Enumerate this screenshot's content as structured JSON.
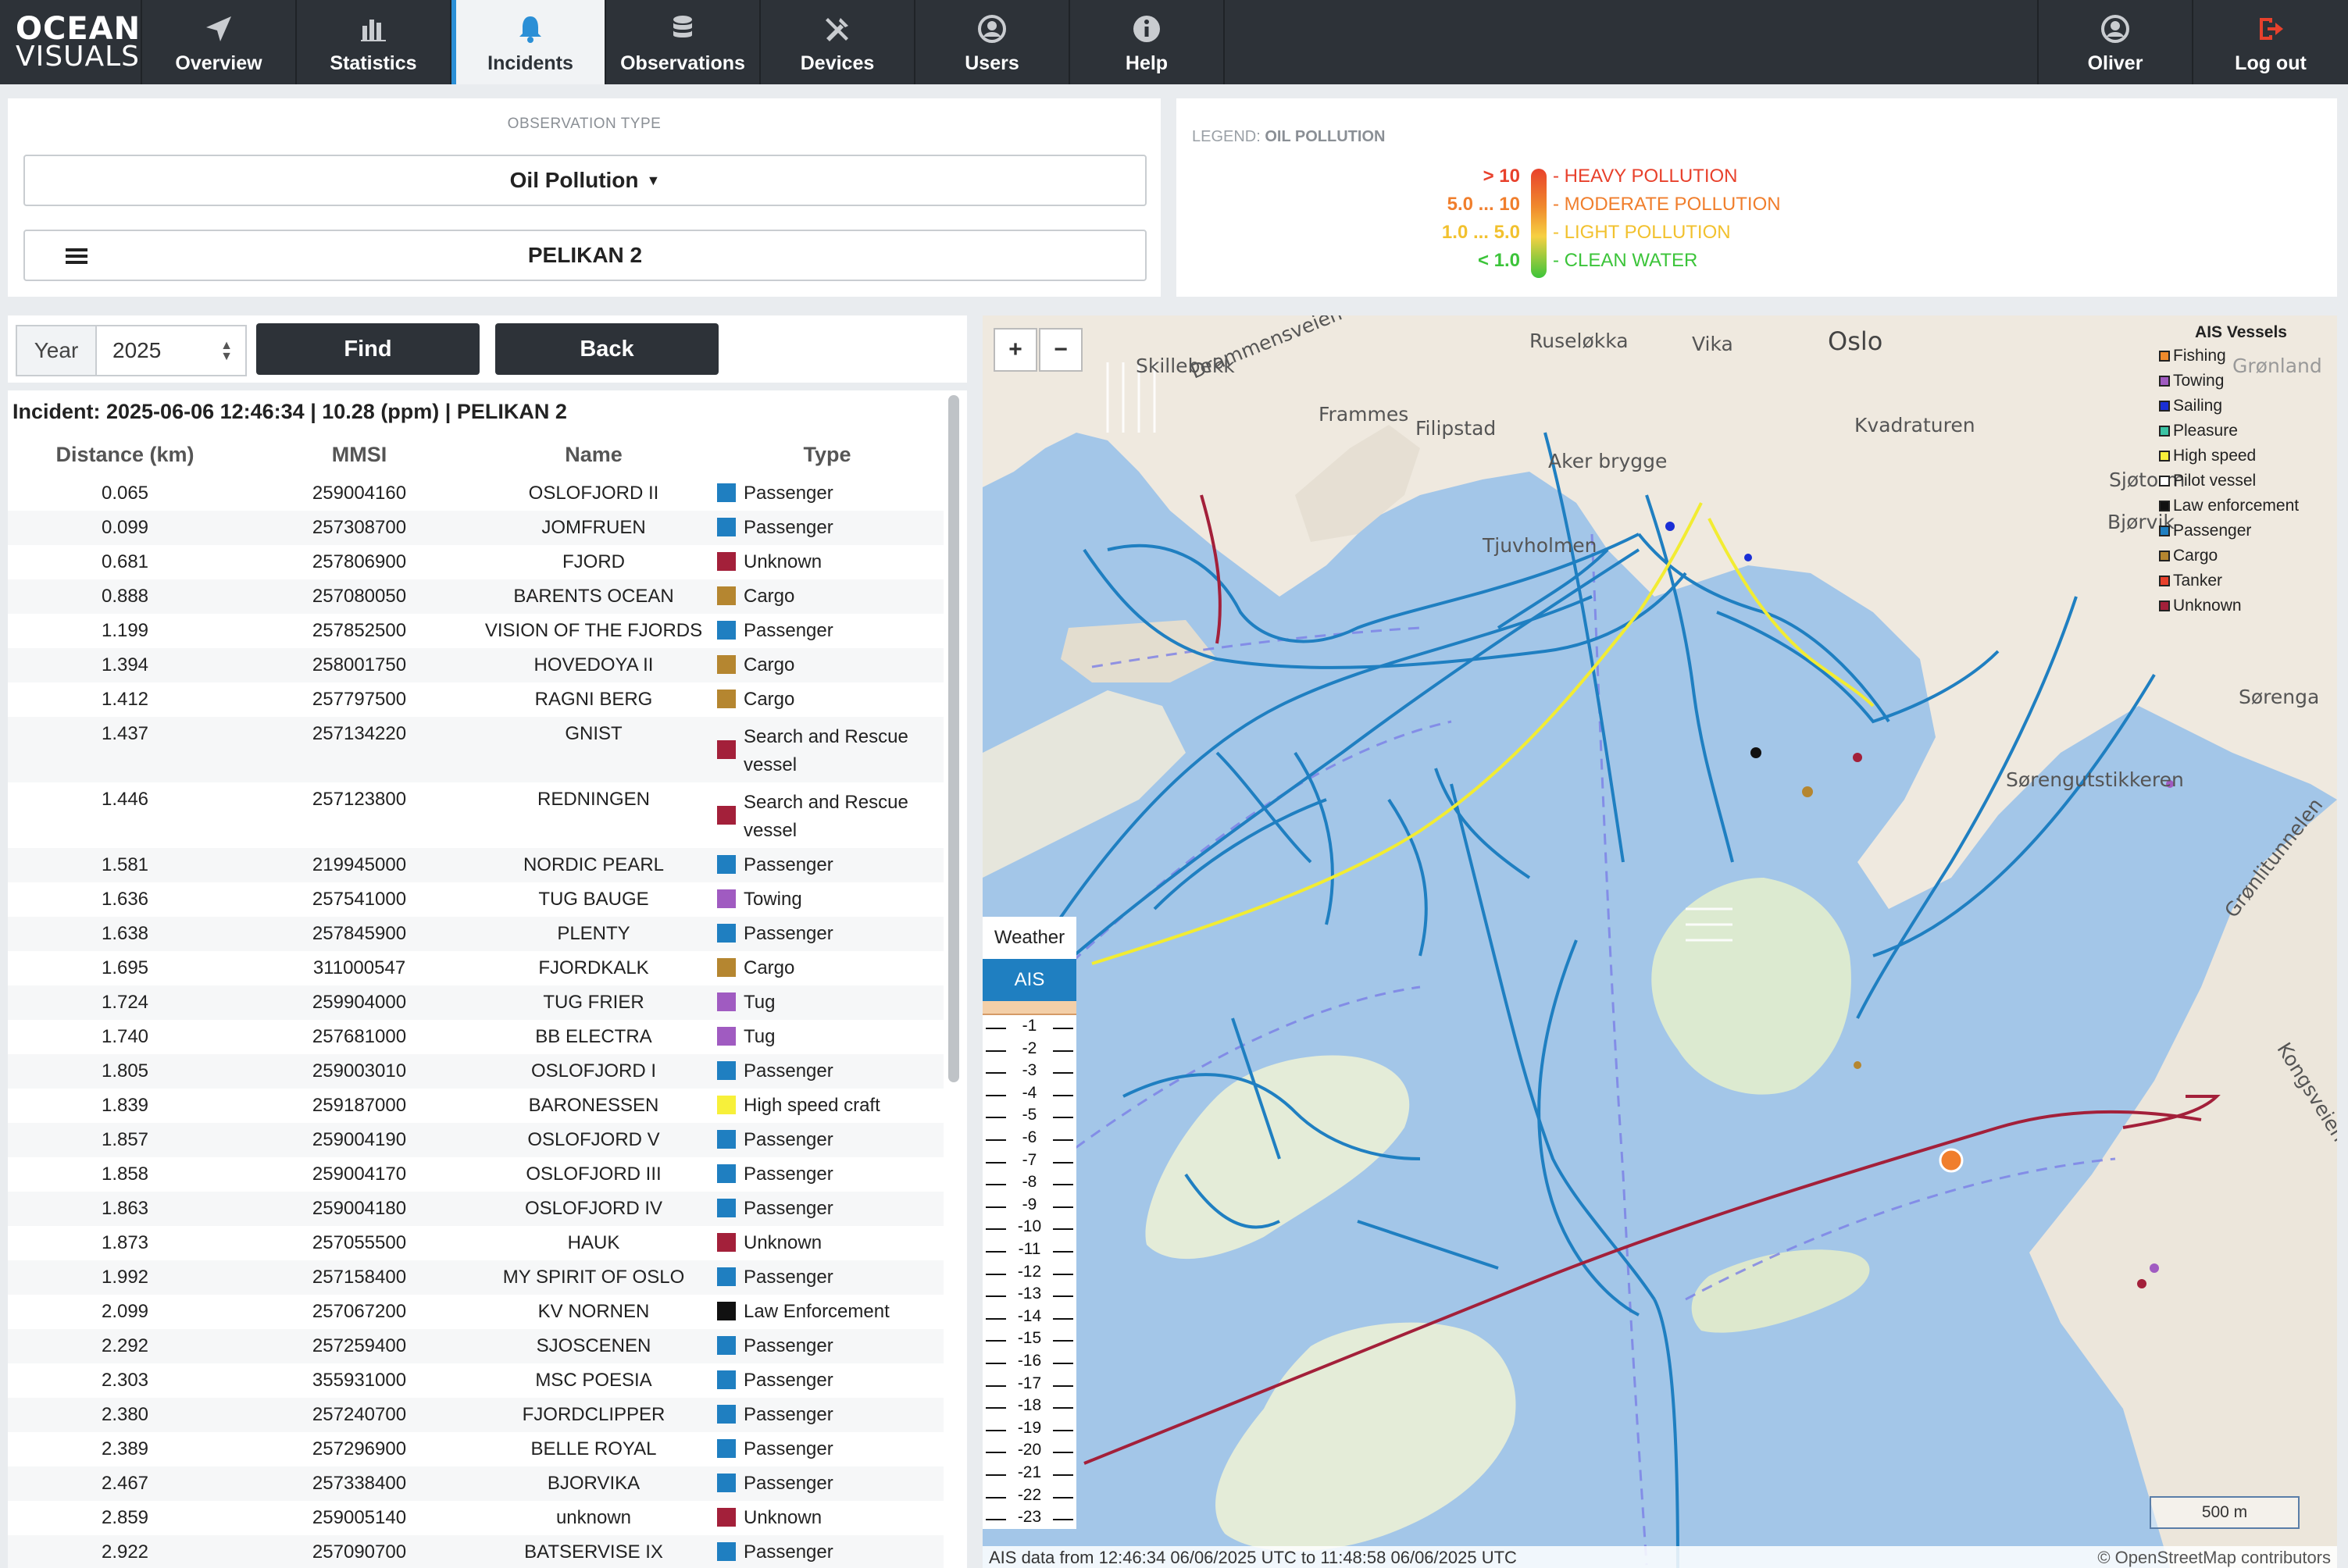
{
  "logo": {
    "line1": "OCEAN",
    "line2": "VISUALS"
  },
  "nav": {
    "tabs": [
      {
        "label": "Overview",
        "icon": "send-icon"
      },
      {
        "label": "Statistics",
        "icon": "bar-chart-icon"
      },
      {
        "label": "Incidents",
        "icon": "bell-icon"
      },
      {
        "label": "Observations",
        "icon": "database-icon"
      },
      {
        "label": "Devices",
        "icon": "tools-icon"
      },
      {
        "label": "Users",
        "icon": "user-circle-icon"
      },
      {
        "label": "Help",
        "icon": "info-icon"
      }
    ],
    "active_tab": "Incidents",
    "user": {
      "label": "Oliver",
      "icon": "user-circle-icon"
    },
    "logout": {
      "label": "Log out",
      "icon": "logout-icon"
    }
  },
  "observation": {
    "section_title": "OBSERVATION TYPE",
    "type_label": "Oil Pollution",
    "device_label": "PELIKAN 2"
  },
  "legend": {
    "prefix": "LEGEND:",
    "name": "OIL POLLUTION",
    "rows": [
      {
        "value": "> 10",
        "text": "- HEAVY POLLUTION",
        "color": "#e8412c"
      },
      {
        "value": "5.0 ... 10",
        "text": "- MODERATE POLLUTION",
        "color": "#f07e2c"
      },
      {
        "value": "1.0 ... 5.0",
        "text": "- LIGHT POLLUTION",
        "color": "#f2c12e"
      },
      {
        "value": "< 1.0",
        "text": "- CLEAN WATER",
        "color": "#3cc43a"
      }
    ]
  },
  "search": {
    "year_label": "Year",
    "year_value": "2025",
    "find_label": "Find",
    "back_label": "Back"
  },
  "incident": {
    "title": "Incident: 2025-06-06 12:46:34 | 10.28 (ppm) | PELIKAN 2",
    "columns": [
      "Distance (km)",
      "MMSI",
      "Name",
      "Type"
    ],
    "rows": [
      {
        "distance": "0.065",
        "mmsi": "259004160",
        "name": "OSLOFJORD II",
        "type": "Passenger",
        "color": "#1f7fc1"
      },
      {
        "distance": "0.099",
        "mmsi": "257308700",
        "name": "JOMFRUEN",
        "type": "Passenger",
        "color": "#1f7fc1"
      },
      {
        "distance": "0.681",
        "mmsi": "257806900",
        "name": "FJORD",
        "type": "Unknown",
        "color": "#a3203a"
      },
      {
        "distance": "0.888",
        "mmsi": "257080050",
        "name": "BARENTS OCEAN",
        "type": "Cargo",
        "color": "#b58630"
      },
      {
        "distance": "1.199",
        "mmsi": "257852500",
        "name": "VISION OF THE FJORDS",
        "type": "Passenger",
        "color": "#1f7fc1"
      },
      {
        "distance": "1.394",
        "mmsi": "258001750",
        "name": "HOVEDOYA II",
        "type": "Cargo",
        "color": "#b58630"
      },
      {
        "distance": "1.412",
        "mmsi": "257797500",
        "name": "RAGNI BERG",
        "type": "Cargo",
        "color": "#b58630"
      },
      {
        "distance": "1.437",
        "mmsi": "257134220",
        "name": "GNIST",
        "type": "Search and Rescue vessel",
        "color": "#a3203a"
      },
      {
        "distance": "1.446",
        "mmsi": "257123800",
        "name": "REDNINGEN",
        "type": "Search and Rescue vessel",
        "color": "#a3203a"
      },
      {
        "distance": "1.581",
        "mmsi": "219945000",
        "name": "NORDIC PEARL",
        "type": "Passenger",
        "color": "#1f7fc1"
      },
      {
        "distance": "1.636",
        "mmsi": "257541000",
        "name": "TUG BAUGE",
        "type": "Towing",
        "color": "#a05bc1"
      },
      {
        "distance": "1.638",
        "mmsi": "257845900",
        "name": "PLENTY",
        "type": "Passenger",
        "color": "#1f7fc1"
      },
      {
        "distance": "1.695",
        "mmsi": "311000547",
        "name": "FJORDKALK",
        "type": "Cargo",
        "color": "#b58630"
      },
      {
        "distance": "1.724",
        "mmsi": "259904000",
        "name": "TUG FRIER",
        "type": "Tug",
        "color": "#a05bc1"
      },
      {
        "distance": "1.740",
        "mmsi": "257681000",
        "name": "BB ELECTRA",
        "type": "Tug",
        "color": "#a05bc1"
      },
      {
        "distance": "1.805",
        "mmsi": "259003010",
        "name": "OSLOFJORD I",
        "type": "Passenger",
        "color": "#1f7fc1"
      },
      {
        "distance": "1.839",
        "mmsi": "259187000",
        "name": "BARONESSEN",
        "type": "High speed craft",
        "color": "#f7f03a"
      },
      {
        "distance": "1.857",
        "mmsi": "259004190",
        "name": "OSLOFJORD V",
        "type": "Passenger",
        "color": "#1f7fc1"
      },
      {
        "distance": "1.858",
        "mmsi": "259004170",
        "name": "OSLOFJORD III",
        "type": "Passenger",
        "color": "#1f7fc1"
      },
      {
        "distance": "1.863",
        "mmsi": "259004180",
        "name": "OSLOFJORD IV",
        "type": "Passenger",
        "color": "#1f7fc1"
      },
      {
        "distance": "1.873",
        "mmsi": "257055500",
        "name": "HAUK",
        "type": "Unknown",
        "color": "#a3203a"
      },
      {
        "distance": "1.992",
        "mmsi": "257158400",
        "name": "MY SPIRIT OF OSLO",
        "type": "Passenger",
        "color": "#1f7fc1"
      },
      {
        "distance": "2.099",
        "mmsi": "257067200",
        "name": "KV NORNEN",
        "type": "Law Enforcement",
        "color": "#111111"
      },
      {
        "distance": "2.292",
        "mmsi": "257259400",
        "name": "SJOSCENEN",
        "type": "Passenger",
        "color": "#1f7fc1"
      },
      {
        "distance": "2.303",
        "mmsi": "355931000",
        "name": "MSC POESIA",
        "type": "Passenger",
        "color": "#1f7fc1"
      },
      {
        "distance": "2.380",
        "mmsi": "257240700",
        "name": "FJORDCLIPPER",
        "type": "Passenger",
        "color": "#1f7fc1"
      },
      {
        "distance": "2.389",
        "mmsi": "257296900",
        "name": "BELLE ROYAL",
        "type": "Passenger",
        "color": "#1f7fc1"
      },
      {
        "distance": "2.467",
        "mmsi": "257338400",
        "name": "BJORVIKA",
        "type": "Passenger",
        "color": "#1f7fc1"
      },
      {
        "distance": "2.859",
        "mmsi": "259005140",
        "name": "unknown",
        "type": "Unknown",
        "color": "#a3203a"
      },
      {
        "distance": "2.922",
        "mmsi": "257090700",
        "name": "BATSERVISE IX",
        "type": "Passenger",
        "color": "#1f7fc1"
      }
    ]
  },
  "map": {
    "zoom_in": "+",
    "zoom_out": "−",
    "weather_label": "Weather",
    "ais_label": "AIS",
    "depth_ticks": [
      "-1",
      "-2",
      "-3",
      "-4",
      "-5",
      "-6",
      "-7",
      "-8",
      "-9",
      "-10",
      "-11",
      "-12",
      "-13",
      "-14",
      "-15",
      "-16",
      "-17",
      "-18",
      "-19",
      "-20",
      "-21",
      "-22",
      "-23"
    ],
    "ais_legend": {
      "title": "AIS Vessels",
      "items": [
        {
          "label": "Fishing",
          "color": "#f08a2c"
        },
        {
          "label": "Towing",
          "color": "#a05bc1"
        },
        {
          "label": "Sailing",
          "color": "#1a2fd6"
        },
        {
          "label": "Pleasure",
          "color": "#3cc4a4"
        },
        {
          "label": "High speed",
          "color": "#f7f03a"
        },
        {
          "label": "Pilot vessel",
          "color": "#ffffff"
        },
        {
          "label": "Law enforcement",
          "color": "#111111"
        },
        {
          "label": "Passenger",
          "color": "#1f7fc1"
        },
        {
          "label": "Cargo",
          "color": "#b58630"
        },
        {
          "label": "Tanker",
          "color": "#e8412c"
        },
        {
          "label": "Unknown",
          "color": "#a3203a"
        }
      ]
    },
    "places": [
      "Oslo",
      "Drammensveien",
      "Skillebekk",
      "Ruseløkka",
      "Vika",
      "Frammes",
      "Filipstad",
      "Aker brygge",
      "Kvadraturen",
      "Tjuvholmen",
      "Sjøtorm",
      "Bjørvik",
      "Grønland",
      "Sørenga",
      "Sørengutstikkeren",
      "Grønlitunnelen",
      "Kongsveien"
    ],
    "scale_label": "500 m",
    "ais_range": "AIS data from 12:46:34 06/06/2025 UTC to 11:48:58 06/06/2025 UTC",
    "credit": "© OpenStreetMap contributors"
  }
}
